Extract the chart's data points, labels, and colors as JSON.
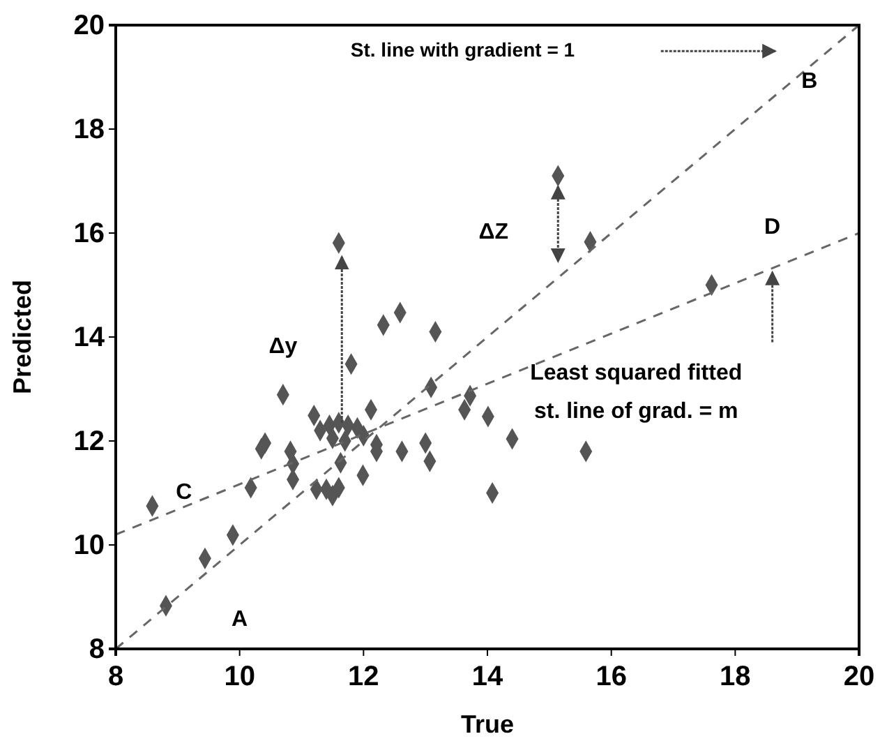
{
  "chart_data": {
    "type": "scatter",
    "xlabel": "True",
    "ylabel": "Predicted",
    "xlim": [
      8,
      20
    ],
    "ylim": [
      8,
      20
    ],
    "xticks": [
      8,
      10,
      12,
      14,
      16,
      18,
      20
    ],
    "yticks": [
      8,
      10,
      12,
      14,
      16,
      18,
      20
    ],
    "grid": false,
    "series": [
      {
        "marker": "diamond",
        "color": "#555555",
        "x": [
          8.59,
          8.81,
          9.44,
          9.89,
          10.18,
          10.41,
          10.35,
          10.7,
          10.82,
          10.86,
          10.86,
          11.2,
          11.24,
          11.4,
          11.5,
          11.6,
          11.6,
          11.8,
          11.63,
          11.99,
          11.3,
          11.45,
          11.6,
          11.75,
          11.9,
          11.5,
          11.7,
          12.0,
          12.12,
          12.21,
          12.21,
          12.32,
          12.59,
          12.62,
          13.0,
          13.07,
          13.16,
          13.09,
          13.72,
          13.63,
          14.01,
          14.08,
          14.4,
          15.59,
          15.14,
          15.66,
          17.62
        ],
        "values": [
          10.75,
          8.83,
          9.74,
          10.19,
          11.1,
          11.96,
          11.85,
          12.89,
          11.8,
          11.56,
          11.26,
          12.49,
          11.07,
          11.07,
          10.95,
          11.1,
          15.81,
          13.48,
          11.58,
          11.34,
          12.2,
          12.3,
          12.35,
          12.3,
          12.25,
          12.05,
          12.0,
          12.1,
          12.6,
          11.93,
          11.8,
          14.23,
          14.47,
          11.8,
          11.96,
          11.61,
          14.1,
          13.03,
          12.87,
          12.6,
          12.47,
          11.0,
          12.04,
          11.8,
          17.1,
          15.83,
          15.0
        ]
      },
      {
        "type": "line",
        "color": "#666666",
        "line_style": "dashed",
        "x": [
          8,
          20
        ],
        "values": [
          8,
          20
        ]
      },
      {
        "type": "line",
        "color": "#666666",
        "line_style": "dashed",
        "x": [
          8,
          20
        ],
        "values": [
          10.2,
          16.0
        ]
      }
    ],
    "annotations": [
      "St. line with gradient = 1",
      "B",
      "A",
      "C",
      "D",
      "Δy",
      "ΔZ",
      "Least squared fitted",
      "st. line of grad. = m"
    ]
  }
}
